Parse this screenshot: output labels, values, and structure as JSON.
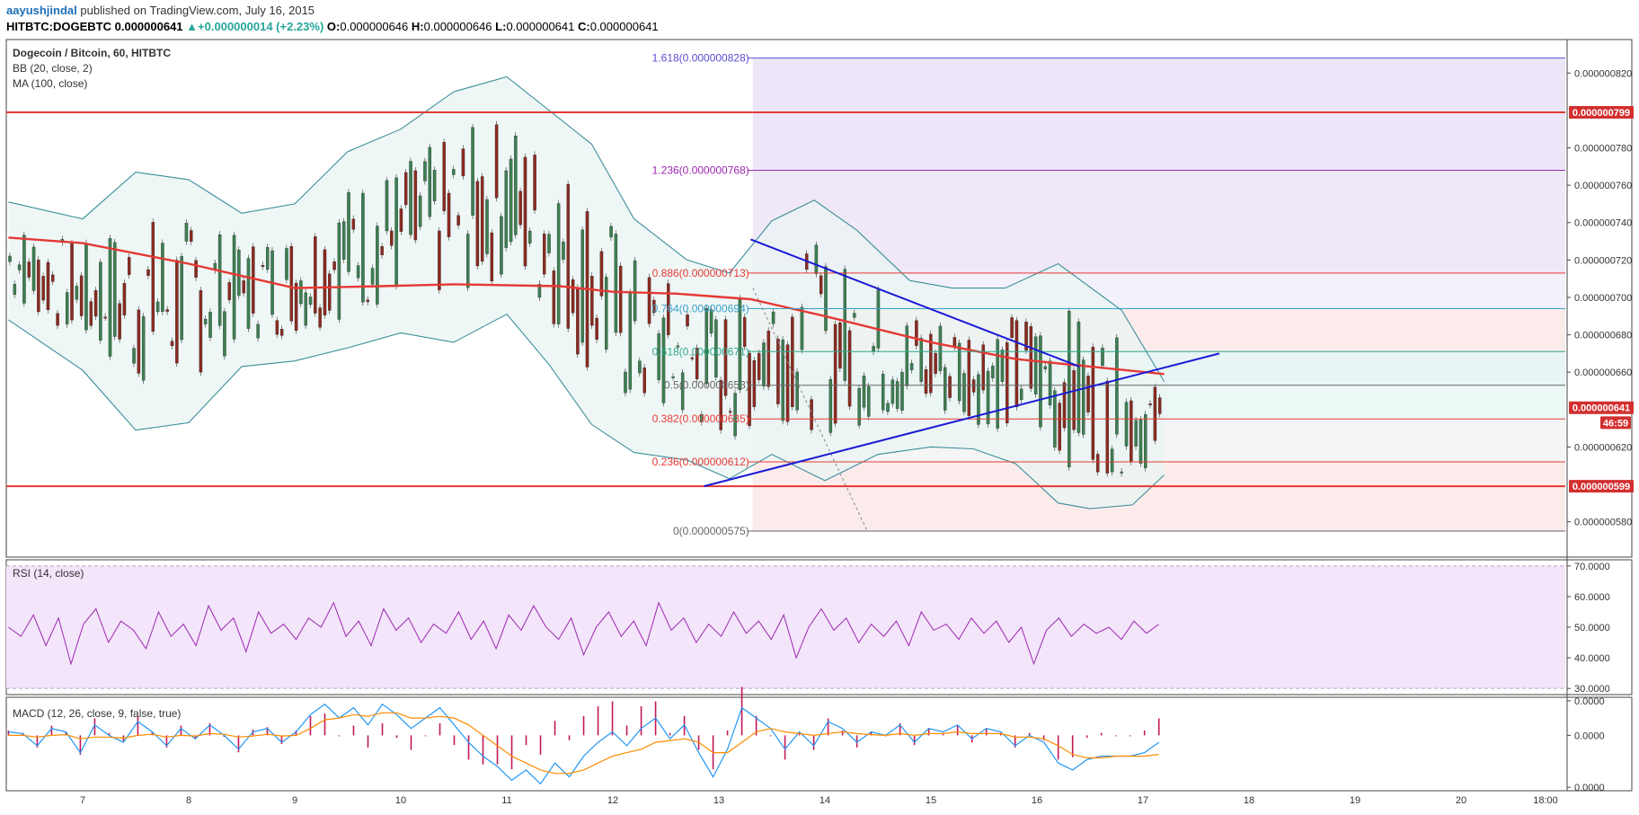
{
  "header": {
    "author": "aayushjindal",
    "published": "published on TradingView.com, July 16, 2015",
    "symbol": "HITBTC:DOGEBTC",
    "last": "0.000000641",
    "change": "+0.000000014 (+2.23%)",
    "o_label": "O:",
    "o": "0.000000646",
    "h_label": "H:",
    "h": "0.000000646",
    "l_label": "L:",
    "l": "0.000000641",
    "c_label": "C:",
    "c": "0.000000641"
  },
  "legend": {
    "title": "Dogecoin / Bitcoin, 60, HITBTC",
    "bb": "BB (20, close, 2)",
    "ma": "MA (100, close)",
    "rsi": "RSI (14, close)",
    "macd": "MACD (12, 26, close, 9, false, true)"
  },
  "colors": {
    "up": "#3d7f52",
    "down": "#8b2a20",
    "ma": "#e53935",
    "bb_line": "#3b8f9a",
    "bb_fill": "#e9f4f3",
    "trend": "#1a1ad6",
    "rsi": "#9c27b0",
    "rsi_band": "#f3e5fa",
    "macd": "#2196f3",
    "signal": "#ff8c00",
    "hist": "#c2185b",
    "resistance": "#e53935"
  },
  "chart_data": [
    {
      "type": "candlestick",
      "title": "Dogecoin / Bitcoin, 60, HITBTC",
      "x_ticks": [
        "7",
        "8",
        "9",
        "10",
        "11",
        "12",
        "13",
        "14",
        "15",
        "16",
        "17",
        "18",
        "19",
        "20",
        "18:00"
      ],
      "y_ticks": [
        "0.000000820",
        "0.000000780",
        "0.000000760",
        "0.000000740",
        "0.000000720",
        "0.000000700",
        "0.000000680",
        "0.000000660",
        "0.000000620",
        "0.000000580"
      ],
      "ylim": [
        5.63e-07,
        8.36e-07
      ],
      "tags": [
        {
          "label": "0.000000799",
          "value": 7.99e-07
        },
        {
          "label": "0.000000641",
          "value": 6.41e-07
        },
        {
          "label": "46:59",
          "value": 6.33e-07
        },
        {
          "label": "0.000000599",
          "value": 5.99e-07
        }
      ],
      "horizontal_levels": [
        7.99e-07,
        5.99e-07
      ],
      "fibonacci": [
        {
          "label": "1.618(0.000000828)",
          "value": 8.28e-07,
          "color": "#5b4fd0"
        },
        {
          "label": "1.236(0.000000768)",
          "value": 7.68e-07,
          "color": "#9c27b0"
        },
        {
          "label": "0.886(0.000000713)",
          "value": 7.13e-07,
          "color": "#e53935"
        },
        {
          "label": "0.764(0.000000694)",
          "value": 6.94e-07,
          "color": "#3aa0c8"
        },
        {
          "label": "0.618(0.000000671)",
          "value": 6.71e-07,
          "color": "#2ea88a"
        },
        {
          "label": "0.5(0.000000653)",
          "value": 6.53e-07,
          "color": "#666666"
        },
        {
          "label": "0.382(0.000000635)",
          "value": 6.35e-07,
          "color": "#e53935"
        },
        {
          "label": "0.236(0.000000612)",
          "value": 6.12e-07,
          "color": "#e53935"
        },
        {
          "label": "0(0.000000575)",
          "value": 5.75e-07,
          "color": "#666666"
        }
      ],
      "trend_lines": [
        {
          "from": [
            13.3,
            7.31e-07
          ],
          "to": [
            16.4,
            6.63e-07
          ]
        },
        {
          "from": [
            12.86,
            5.99e-07
          ],
          "to": [
            17.72,
            6.7e-07
          ]
        }
      ],
      "series": [
        {
          "name": "MA (100, close)",
          "points": [
            [
              6.3,
              7.32e-07
            ],
            [
              7,
              7.29e-07
            ],
            [
              8,
              7.18e-07
            ],
            [
              9,
              7.05e-07
            ],
            [
              9.8,
              7.06e-07
            ],
            [
              10.5,
              7.07e-07
            ],
            [
              11.5,
              7.06e-07
            ],
            [
              12,
              7.03e-07
            ],
            [
              12.6,
              7.02e-07
            ],
            [
              13.3,
              6.99e-07
            ],
            [
              14,
              6.9e-07
            ],
            [
              15,
              6.76e-07
            ],
            [
              15.8,
              6.67e-07
            ],
            [
              16.5,
              6.63e-07
            ],
            [
              17.2,
              6.59e-07
            ]
          ]
        },
        {
          "name": "BB upper",
          "points": [
            [
              6.3,
              7.51e-07
            ],
            [
              7,
              7.42e-07
            ],
            [
              7.5,
              7.67e-07
            ],
            [
              8,
              7.63e-07
            ],
            [
              8.5,
              7.45e-07
            ],
            [
              9,
              7.5e-07
            ],
            [
              9.5,
              7.78e-07
            ],
            [
              10,
              7.9e-07
            ],
            [
              10.5,
              8.1e-07
            ],
            [
              11,
              8.18e-07
            ],
            [
              11.4,
              8e-07
            ],
            [
              11.8,
              7.82e-07
            ],
            [
              12.2,
              7.42e-07
            ],
            [
              12.7,
              7.2e-07
            ],
            [
              13.1,
              7.13e-07
            ],
            [
              13.5,
              7.41e-07
            ],
            [
              13.9,
              7.52e-07
            ],
            [
              14.3,
              7.36e-07
            ],
            [
              14.8,
              7.09e-07
            ],
            [
              15.2,
              7.05e-07
            ],
            [
              15.7,
              7.05e-07
            ],
            [
              16.2,
              7.18e-07
            ],
            [
              16.8,
              6.93e-07
            ],
            [
              17.2,
              6.55e-07
            ]
          ]
        },
        {
          "name": "BB lower",
          "points": [
            [
              6.3,
              6.88e-07
            ],
            [
              7,
              6.61e-07
            ],
            [
              7.5,
              6.29e-07
            ],
            [
              8,
              6.33e-07
            ],
            [
              8.5,
              6.63e-07
            ],
            [
              9,
              6.66e-07
            ],
            [
              9.5,
              6.73e-07
            ],
            [
              10,
              6.81e-07
            ],
            [
              10.5,
              6.76e-07
            ],
            [
              11,
              6.91e-07
            ],
            [
              11.4,
              6.64e-07
            ],
            [
              11.8,
              6.32e-07
            ],
            [
              12.2,
              6.17e-07
            ],
            [
              12.7,
              6.13e-07
            ],
            [
              13.1,
              6.03e-07
            ],
            [
              13.5,
              6.16e-07
            ],
            [
              14,
              6.02e-07
            ],
            [
              14.5,
              6.16e-07
            ],
            [
              15,
              6.2e-07
            ],
            [
              15.4,
              6.19e-07
            ],
            [
              15.8,
              6.11e-07
            ],
            [
              16.2,
              5.9e-07
            ],
            [
              16.5,
              5.87e-07
            ],
            [
              16.9,
              5.89e-07
            ],
            [
              17.2,
              6.05e-07
            ]
          ]
        }
      ]
    },
    {
      "type": "line",
      "title": "RSI (14, close)",
      "y_ticks": [
        "70.0000",
        "60.0000",
        "50.0000",
        "40.0000",
        "30.0000"
      ],
      "ylim": [
        28,
        72
      ],
      "band": [
        30,
        70
      ],
      "series": [
        {
          "name": "RSI (14, close)",
          "values": [
            50,
            47,
            54,
            44,
            53,
            38,
            51,
            56,
            45,
            52,
            49,
            43,
            55,
            47,
            51,
            44,
            57,
            49,
            53,
            42,
            55,
            48,
            51,
            46,
            53,
            50,
            58,
            47,
            52,
            44,
            56,
            49,
            53,
            45,
            51,
            48,
            55,
            46,
            52,
            43,
            54,
            49,
            57,
            50,
            46,
            53,
            41,
            50,
            55,
            47,
            52,
            44,
            58,
            49,
            53,
            45,
            51,
            47,
            55,
            48,
            52,
            46,
            54,
            40,
            50,
            56,
            49,
            53,
            45,
            51,
            47,
            52,
            44,
            55,
            49,
            51,
            46,
            53,
            48,
            52,
            45,
            50,
            38,
            49,
            53,
            47,
            51,
            48,
            50,
            46,
            52,
            48,
            51
          ]
        }
      ]
    },
    {
      "type": "line",
      "title": "MACD (12, 26, close, 9, false, true)",
      "y_ticks": [
        "0.0000",
        "0.0000",
        "0.0000"
      ],
      "ylim": [
        -1.6,
        1.1
      ],
      "series": [
        {
          "name": "MACD",
          "values": [
            0.1,
            0.05,
            -0.3,
            0.2,
            0.1,
            -0.5,
            0.3,
            0.0,
            -0.2,
            0.4,
            0.1,
            -0.3,
            0.2,
            -0.1,
            0.3,
            0.0,
            -0.4,
            0.1,
            0.2,
            -0.2,
            0.1,
            0.6,
            0.9,
            0.5,
            0.8,
            0.3,
            0.9,
            0.6,
            0.2,
            0.5,
            0.8,
            0.3,
            -0.2,
            -0.6,
            -0.9,
            -1.3,
            -1.0,
            -1.4,
            -0.8,
            -1.2,
            -0.6,
            -0.2,
            0.1,
            -0.3,
            0.2,
            0.5,
            -0.1,
            0.3,
            -0.5,
            -1.2,
            -0.4,
            0.8,
            0.5,
            0.2,
            -0.4,
            0.1,
            -0.3,
            0.4,
            0.2,
            -0.2,
            0.1,
            0.0,
            0.3,
            -0.2,
            0.2,
            0.1,
            0.3,
            -0.1,
            0.2,
            0.1,
            -0.3,
            0.0,
            -0.2,
            -0.8,
            -1.0,
            -0.7,
            -0.6,
            -0.6,
            -0.6,
            -0.5,
            -0.2
          ]
        },
        {
          "name": "Signal",
          "values": [
            0.0,
            0.0,
            -0.05,
            0.0,
            0.02,
            -0.1,
            -0.05,
            -0.05,
            -0.08,
            0.0,
            0.03,
            -0.05,
            0.0,
            -0.02,
            0.05,
            0.03,
            -0.05,
            -0.02,
            0.03,
            -0.02,
            0.0,
            0.2,
            0.45,
            0.5,
            0.6,
            0.55,
            0.65,
            0.65,
            0.5,
            0.5,
            0.55,
            0.5,
            0.3,
            0.0,
            -0.3,
            -0.6,
            -0.8,
            -1.0,
            -1.1,
            -1.1,
            -1.0,
            -0.8,
            -0.6,
            -0.5,
            -0.4,
            -0.2,
            -0.15,
            -0.1,
            -0.2,
            -0.5,
            -0.5,
            -0.2,
            0.1,
            0.2,
            0.1,
            0.05,
            0.0,
            0.05,
            0.1,
            0.05,
            0.02,
            0.0,
            0.05,
            0.0,
            0.05,
            0.05,
            0.1,
            0.05,
            0.05,
            0.05,
            -0.05,
            -0.05,
            -0.1,
            -0.3,
            -0.55,
            -0.65,
            -0.65,
            -0.6,
            -0.6,
            -0.6,
            -0.55
          ]
        }
      ]
    }
  ]
}
